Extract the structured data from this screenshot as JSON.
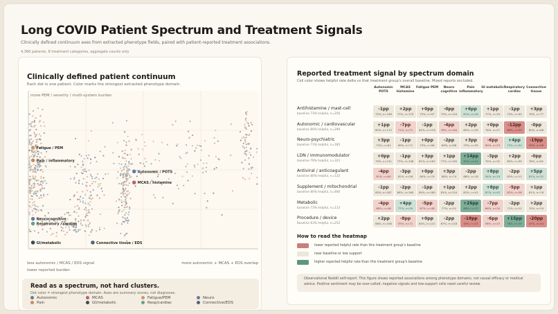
{
  "header": {
    "title": "Long COVID Patient Spectrum and Treatment Signals",
    "subtitle": "Clinically defined continuum axes from extracted phenotype fields, paired with patient-reported treatment associations.",
    "meta": "4,366 patients, 8 treatment categories, aggregate counts only"
  },
  "left_panel": {
    "title": "Clinically defined patient continuum",
    "subtitle": "Each dot is one patient. Color marks the strongest extracted phenotype domain.",
    "y_top_label": "more PEM / severity / multi-system burden",
    "x_left_label": "less autonomic / MCAS / EDS signal",
    "x_left_label2": "lower reported burden",
    "x_right_label": "more autonomic + MCAS + EDS overlap"
  },
  "legend": {
    "title": "Read as a spectrum, not hard clusters.",
    "subtitle": "Dot color = strongest phenotype domain. Axes are summary scores, not diagnoses.",
    "items": [
      {
        "label": "Autonomic",
        "color": "#5b7fa6"
      },
      {
        "label": "MCAS",
        "color": "#b5646f"
      },
      {
        "label": "Fatigue/PEM",
        "color": "#c49a6c"
      },
      {
        "label": "Neuro",
        "color": "#6f7a9a"
      },
      {
        "label": "Pain",
        "color": "#d08a5c"
      },
      {
        "label": "GI/metabolic",
        "color": "#3f4a4c"
      },
      {
        "label": "Resp/cardiac",
        "color": "#6b9e92"
      },
      {
        "label": "Connective/EDS",
        "color": "#566270"
      }
    ]
  },
  "chart_data": [
    {
      "type": "scatter",
      "title": "Clinically defined patient continuum",
      "xlabel": "less autonomic / MCAS / EDS signal → more autonomic + MCAS + EDS overlap",
      "ylabel": "more PEM / severity / multi-system burden",
      "grid": true,
      "annotations": [
        {
          "label": "Fatigue / PEM",
          "x": 0.02,
          "y": 0.64,
          "color": "#c49a6c"
        },
        {
          "label": "Pain / inflammatory",
          "x": 0.02,
          "y": 0.56,
          "color": "#d08a5c"
        },
        {
          "label": "Autonomic / POTS",
          "x": 0.46,
          "y": 0.49,
          "color": "#5b7fa6"
        },
        {
          "label": "MCAS / histamine",
          "x": 0.46,
          "y": 0.42,
          "color": "#b5646f"
        },
        {
          "label": "Neurocognitive",
          "x": 0.02,
          "y": 0.19,
          "color": "#6f7a9a"
        },
        {
          "label": "Respiratory / cardiac",
          "x": 0.02,
          "y": 0.16,
          "color": "#6b9e92"
        },
        {
          "label": "GI/metabolic",
          "x": 0.02,
          "y": 0.04,
          "color": "#3f4a4c"
        },
        {
          "label": "Connective tissue / EDS",
          "x": 0.28,
          "y": 0.04,
          "color": "#566270"
        }
      ]
    },
    {
      "type": "heatmap",
      "title": "Reported treatment signal by spectrum domain",
      "subtitle": "Cell color shows helpful rate delta vs that treatment group's overall baseline. Mixed reports excluded.",
      "columns": [
        "Autonomic POTS",
        "MCAS histamine",
        "Fatigue PEM",
        "Neuro cognitive",
        "Pain inflammatory",
        "GI metabolic",
        "Respiratory cardiac",
        "Connective tissue"
      ],
      "rows": [
        {
          "name": "Antihistamine / mast-cell",
          "baseline": "baseline 73% helpful, n=256",
          "values": [
            "-1pp",
            "+2pp",
            "+0pp",
            "-0pp",
            "+6pp",
            "+1pp",
            "-1pp",
            "+3pp"
          ],
          "sub": [
            "75%, n=146",
            "77%, n=170",
            "73%, n=97",
            "73%, n=124",
            "81%, n=16",
            "77%, n=29",
            "73%, n=40",
            "76%, n=77"
          ]
        },
        {
          "name": "Autonomic / cardiovascular",
          "baseline": "baseline 80% helpful, n=299",
          "values": [
            "+1pp",
            "-7pp",
            "-1pp",
            "-4pp",
            "+2pp",
            "+0pp",
            "-12pp",
            "-0pp"
          ],
          "sub": [
            "80%, n=113",
            "71%, n=71",
            "82%, n=129",
            "76%, n=104",
            "80%, n=39",
            "78%, n=27",
            "68%, n=33",
            "80%, n=68"
          ]
        },
        {
          "name": "Neuro-psychiatric",
          "baseline": "baseline 73% helpful, n=185",
          "values": [
            "+3pp",
            "-1pp",
            "+0pp",
            "-2pp",
            "+3pp",
            "-6pp",
            "+4pp",
            "-19pp"
          ],
          "sub": [
            "73%, n=81",
            "69%, n=71",
            "73%, n=96",
            "69%, n=86",
            "75%, n=35",
            "69%, n=23",
            "73%, n=30",
            "55%, n=56"
          ]
        },
        {
          "name": "LDN / immunomodulator",
          "baseline": "baseline 78% helpful, n=323",
          "values": [
            "+0pp",
            "-1pp",
            "+3pp",
            "+1pp",
            "+14pp",
            "-3pp",
            "+2pp",
            "-0pp"
          ],
          "sub": [
            "79%, n=131",
            "77%, n=108",
            "81%, n=167",
            "77%, n=152",
            "92%, n=41",
            "75%, n=32",
            "80%, n=39",
            "78%, n=81"
          ]
        },
        {
          "name": "Antiviral / anticoagulant",
          "baseline": "baseline 80% helpful, n=132",
          "values": [
            "-4pp",
            "-3pp",
            "+0pp",
            "+3pp",
            "-2pp",
            "+8pp",
            "-2pp",
            "+5pp"
          ],
          "sub": [
            "81%, n=60",
            "82%, n=56",
            "80%, n=74",
            "88%, n=74",
            "88%, n=18",
            "94%, n=19",
            "83%, n=13",
            "81%, n=31"
          ]
        },
        {
          "name": "Supplement / mitochondrial",
          "baseline": "baseline 80% helpful, n=466",
          "values": [
            "-1pp",
            "-2pp",
            "-1pp",
            "+1pp",
            "+2pp",
            "+8pp",
            "-5pp",
            "+1pp"
          ],
          "sub": [
            "80%, n=187",
            "80%, n=160",
            "80%, n=180",
            "81%, n=210",
            "82%, n=42",
            "87%, n=45",
            "82%, n=38",
            "81%, n=76"
          ]
        },
        {
          "name": "Metabolic",
          "baseline": "baseline 73% helpful, n=113",
          "values": [
            "-4pp",
            "+4pp",
            "-5pp",
            "-2pp",
            "+26pp",
            "-7pp",
            "-2pp",
            "+2pp"
          ],
          "sub": [
            "68%, n=48",
            "77%, n=30",
            "67%, n=48",
            "77%, n=51",
            "88%, n=17",
            "66%, n=20",
            "71%, n=12",
            "75%, n=24"
          ]
        },
        {
          "name": "Procedure / device",
          "baseline": "baseline 63% helpful, n=252",
          "values": [
            "+2pp",
            "-8pp",
            "+0pp",
            "-2pp",
            "-18pp",
            "-6pp",
            "+15pp",
            "-20pp"
          ],
          "sub": [
            "68%, n=108",
            "55%, n=72",
            "64%, n=121",
            "67%, n=118",
            "45%, n=22",
            "58%, n=23",
            "78%, n=29",
            "43%, n=44"
          ]
        }
      ]
    }
  ],
  "how_to_read": {
    "title": "How to read the heatmap",
    "items": [
      {
        "text": "lower reported helpful rate than this treatment group's baseline",
        "color": "#c97f7a"
      },
      {
        "text": "near baseline or low support",
        "color": "#ece6db"
      },
      {
        "text": "higher reported helpful rate than this treatment group's baseline",
        "color": "#5e9582"
      }
    ]
  },
  "note": "Observational Reddit self-report. This figure shows reported associations among phenotype domains, not causal efficacy or medical advice. Positive sentiment may be over-called; negative signals and low-support cells need careful review."
}
